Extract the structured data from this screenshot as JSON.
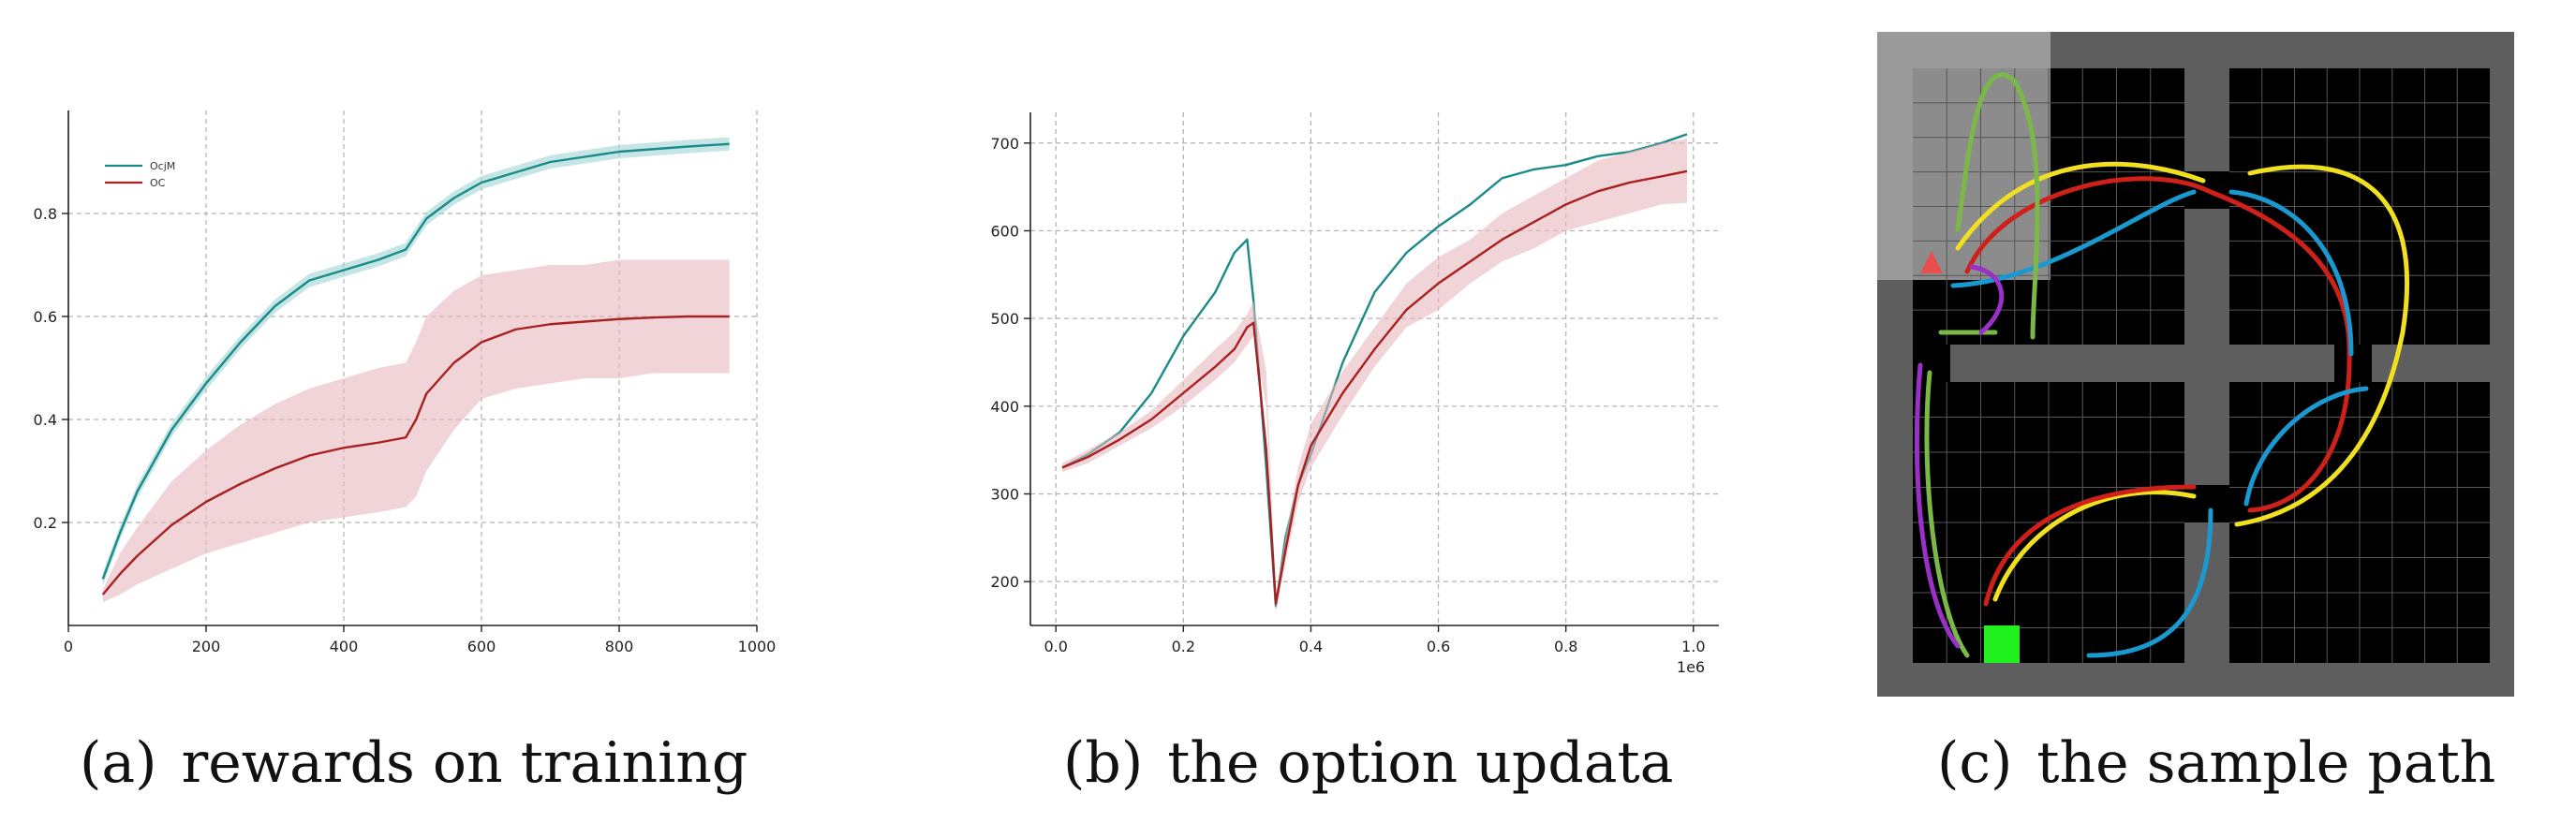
{
  "captions": [
    {
      "label": "(a)",
      "text": "rewards on training"
    },
    {
      "label": "(b)",
      "text": "the option updata"
    },
    {
      "label": "(c)",
      "text": "the sample path"
    }
  ],
  "colors": {
    "teal": "#1a8a8a",
    "teal_band": "#9fd6d3",
    "red": "#a82020",
    "red_band": "#e8b8bc",
    "grid": "#b0b0b0",
    "axis": "#222222"
  },
  "chart_data": [
    {
      "type": "line",
      "xlim": [
        0,
        1000
      ],
      "ylim": [
        0,
        1.0
      ],
      "x_ticks": [
        0,
        200,
        400,
        600,
        800,
        1000
      ],
      "y_ticks": [
        0.2,
        0.4,
        0.6,
        0.8
      ],
      "grid": true,
      "legend_position": "top-left",
      "series": [
        {
          "name": "OcjM",
          "color": "teal",
          "band": 0.013,
          "points": [
            [
              50,
              0.09
            ],
            [
              75,
              0.18
            ],
            [
              100,
              0.26
            ],
            [
              150,
              0.38
            ],
            [
              200,
              0.47
            ],
            [
              250,
              0.55
            ],
            [
              300,
              0.62
            ],
            [
              350,
              0.67
            ],
            [
              400,
              0.69
            ],
            [
              450,
              0.71
            ],
            [
              490,
              0.73
            ],
            [
              505,
              0.76
            ],
            [
              520,
              0.79
            ],
            [
              560,
              0.83
            ],
            [
              600,
              0.86
            ],
            [
              650,
              0.88
            ],
            [
              700,
              0.9
            ],
            [
              750,
              0.91
            ],
            [
              800,
              0.92
            ],
            [
              850,
              0.925
            ],
            [
              900,
              0.93
            ],
            [
              960,
              0.935
            ]
          ]
        },
        {
          "name": "OC",
          "color": "red",
          "band_lower": [
            0.045,
            0.06,
            0.08,
            0.11,
            0.14,
            0.16,
            0.18,
            0.2,
            0.21,
            0.22,
            0.23,
            0.25,
            0.3,
            0.38,
            0.44,
            0.46,
            0.47,
            0.48,
            0.48,
            0.49,
            0.49,
            0.49
          ],
          "band_upper": [
            0.07,
            0.14,
            0.19,
            0.28,
            0.34,
            0.39,
            0.43,
            0.46,
            0.48,
            0.5,
            0.51,
            0.55,
            0.6,
            0.65,
            0.68,
            0.69,
            0.7,
            0.7,
            0.71,
            0.71,
            0.71,
            0.71
          ],
          "points": [
            [
              50,
              0.06
            ],
            [
              75,
              0.1
            ],
            [
              100,
              0.135
            ],
            [
              150,
              0.195
            ],
            [
              200,
              0.24
            ],
            [
              250,
              0.275
            ],
            [
              300,
              0.305
            ],
            [
              350,
              0.33
            ],
            [
              400,
              0.345
            ],
            [
              450,
              0.355
            ],
            [
              490,
              0.365
            ],
            [
              505,
              0.4
            ],
            [
              520,
              0.45
            ],
            [
              560,
              0.51
            ],
            [
              600,
              0.55
            ],
            [
              650,
              0.575
            ],
            [
              700,
              0.585
            ],
            [
              750,
              0.59
            ],
            [
              800,
              0.595
            ],
            [
              850,
              0.598
            ],
            [
              900,
              0.6
            ],
            [
              960,
              0.6
            ]
          ]
        }
      ]
    },
    {
      "type": "line",
      "xlim": [
        -0.04,
        1.04
      ],
      "ylim": [
        150,
        735
      ],
      "x_ticks": [
        0.0,
        0.2,
        0.4,
        0.6,
        0.8,
        1.0
      ],
      "y_ticks": [
        200,
        300,
        400,
        500,
        600,
        700
      ],
      "x_offset_label": "1e6",
      "grid": true,
      "series": [
        {
          "color": "teal",
          "points": [
            [
              0.01,
              330
            ],
            [
              0.05,
              345
            ],
            [
              0.1,
              370
            ],
            [
              0.15,
              415
            ],
            [
              0.2,
              480
            ],
            [
              0.25,
              530
            ],
            [
              0.28,
              575
            ],
            [
              0.3,
              590
            ],
            [
              0.31,
              520
            ],
            [
              0.33,
              330
            ],
            [
              0.345,
              172
            ],
            [
              0.36,
              250
            ],
            [
              0.38,
              310
            ],
            [
              0.4,
              345
            ],
            [
              0.45,
              450
            ],
            [
              0.5,
              530
            ],
            [
              0.55,
              575
            ],
            [
              0.6,
              605
            ],
            [
              0.65,
              630
            ],
            [
              0.7,
              660
            ],
            [
              0.75,
              670
            ],
            [
              0.8,
              675
            ],
            [
              0.85,
              685
            ],
            [
              0.9,
              690
            ],
            [
              0.95,
              700
            ],
            [
              0.99,
              710
            ]
          ]
        },
        {
          "color": "red",
          "band_lower": [
            325,
            335,
            355,
            375,
            400,
            430,
            450,
            470,
            480,
            400,
            165,
            220,
            290,
            330,
            390,
            445,
            490,
            510,
            540,
            565,
            580,
            600,
            610,
            620,
            630,
            632
          ],
          "band_upper": [
            335,
            350,
            370,
            395,
            430,
            465,
            485,
            505,
            520,
            440,
            185,
            250,
            330,
            380,
            440,
            490,
            540,
            570,
            590,
            620,
            640,
            660,
            680,
            690,
            700,
            705
          ],
          "points": [
            [
              0.01,
              330
            ],
            [
              0.05,
              342
            ],
            [
              0.1,
              362
            ],
            [
              0.15,
              385
            ],
            [
              0.2,
              415
            ],
            [
              0.25,
              445
            ],
            [
              0.28,
              465
            ],
            [
              0.3,
              490
            ],
            [
              0.31,
              495
            ],
            [
              0.33,
              350
            ],
            [
              0.345,
              175
            ],
            [
              0.36,
              235
            ],
            [
              0.38,
              310
            ],
            [
              0.4,
              355
            ],
            [
              0.45,
              415
            ],
            [
              0.5,
              465
            ],
            [
              0.55,
              510
            ],
            [
              0.6,
              540
            ],
            [
              0.65,
              565
            ],
            [
              0.7,
              590
            ],
            [
              0.75,
              610
            ],
            [
              0.8,
              630
            ],
            [
              0.85,
              645
            ],
            [
              0.9,
              655
            ],
            [
              0.95,
              662
            ],
            [
              0.99,
              668
            ]
          ]
        }
      ]
    }
  ],
  "grid_map": {
    "cells": 16,
    "paths": [
      {
        "color": "#f0e020"
      },
      {
        "color": "#d0201a"
      },
      {
        "color": "#1a98d0"
      },
      {
        "color": "#7ab848"
      },
      {
        "color": "#9a30c8"
      }
    ],
    "agent_color": "#e85050",
    "goal_color": "#20f020"
  }
}
